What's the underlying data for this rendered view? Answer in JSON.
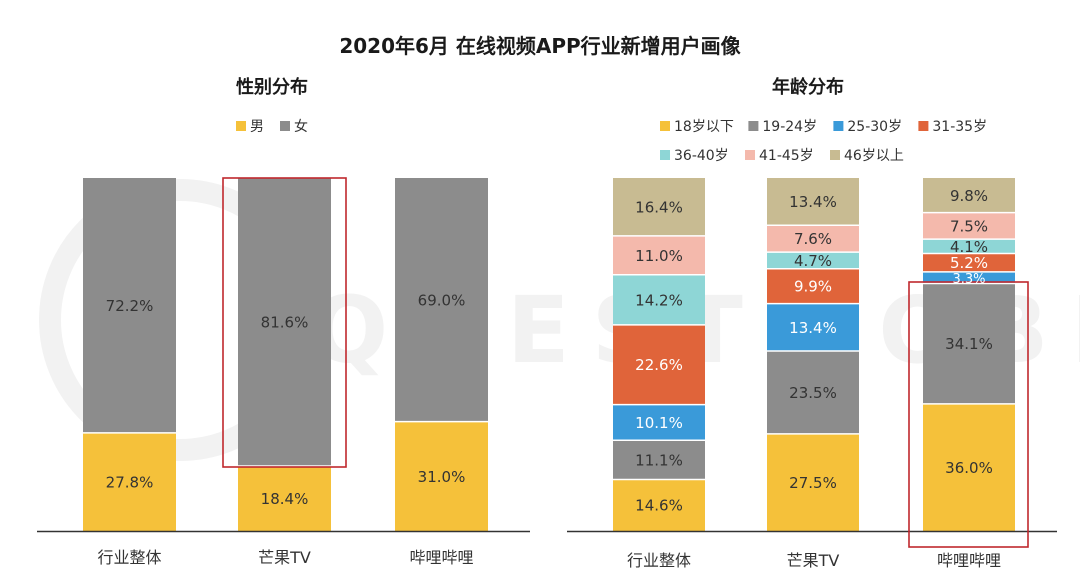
{
  "title": "2020年6月 在线视频APP行业新增用户画像",
  "watermark": "QUESTMOBILE",
  "colors": {
    "axis": "#333333",
    "highlight": "#c0282d",
    "label_dark": "#333333",
    "label_light": "#ffffff",
    "watermark": "#f2f2f2"
  },
  "chart_data": [
    {
      "type": "bar",
      "stacked": true,
      "percent": true,
      "title": "性别分布",
      "categories": [
        "行业整体",
        "芒果TV",
        "哔哩哔哩"
      ],
      "series": [
        {
          "name": "男",
          "color": "#f5c13a",
          "values": [
            27.8,
            18.4,
            31.0
          ],
          "labels": [
            "27.8%",
            "18.4%",
            "31.0%"
          ]
        },
        {
          "name": "女",
          "color": "#8c8c8c",
          "values": [
            72.2,
            81.6,
            69.0
          ],
          "labels": [
            "72.2%",
            "81.6%",
            "69.0%"
          ]
        }
      ],
      "ylim": [
        0,
        100
      ],
      "legend_position": "top",
      "grid": false,
      "highlighted_category": "芒果TV"
    },
    {
      "type": "bar",
      "stacked": true,
      "percent": true,
      "title": "年龄分布",
      "categories": [
        "行业整体",
        "芒果TV",
        "哔哩哔哩"
      ],
      "series": [
        {
          "name": "18岁以下",
          "color": "#f5c13a",
          "values": [
            14.6,
            27.5,
            36.0
          ],
          "labels": [
            "14.6%",
            "27.5%",
            "36.0%"
          ]
        },
        {
          "name": "19-24岁",
          "color": "#8c8c8c",
          "values": [
            11.1,
            23.5,
            34.1
          ],
          "labels": [
            "11.1%",
            "23.5%",
            "34.1%"
          ]
        },
        {
          "name": "25-30岁",
          "color": "#3a9ad9",
          "values": [
            10.1,
            13.4,
            3.3
          ],
          "labels": [
            "10.1%",
            "13.4%",
            "3.3%"
          ]
        },
        {
          "name": "31-35岁",
          "color": "#e0643a",
          "values": [
            22.6,
            9.9,
            5.2
          ],
          "labels": [
            "22.6%",
            "9.9%",
            "5.2%"
          ]
        },
        {
          "name": "36-40岁",
          "color": "#8ed6d6",
          "values": [
            14.2,
            4.7,
            4.1
          ],
          "labels": [
            "14.2%",
            "4.7%",
            "4.1%"
          ]
        },
        {
          "name": "41-45岁",
          "color": "#f4b9ac",
          "values": [
            11.0,
            7.6,
            7.5
          ],
          "labels": [
            "11.0%",
            "7.6%",
            "7.5%"
          ]
        },
        {
          "name": "46岁以上",
          "color": "#c8bb92",
          "values": [
            16.4,
            13.4,
            9.8
          ],
          "labels": [
            "16.4%",
            "13.4%",
            "9.8%"
          ]
        }
      ],
      "ylim": [
        0,
        100
      ],
      "legend_position": "top",
      "grid": false,
      "highlighted_category": "哔哩哔哩"
    }
  ]
}
